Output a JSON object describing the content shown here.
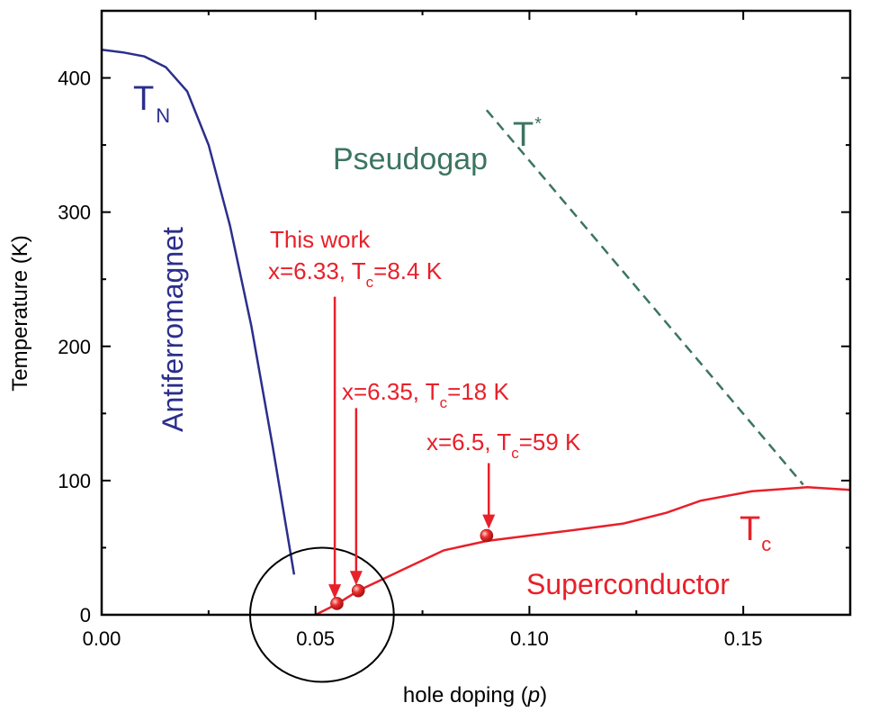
{
  "chart_data": {
    "type": "line",
    "title": "",
    "xlabel_prefix": "hole doping (",
    "xlabel_var": "p",
    "xlabel_suffix": ")",
    "ylabel": "Temperature (K)",
    "xlim": [
      0.0,
      0.175
    ],
    "ylim": [
      0,
      450
    ],
    "x_ticks": [
      0.0,
      0.05,
      0.1,
      0.15
    ],
    "x_tick_labels": [
      "0.00",
      "0.05",
      "0.10",
      "0.15"
    ],
    "y_ticks": [
      0,
      100,
      200,
      300,
      400
    ],
    "y_tick_labels": [
      "0",
      "100",
      "200",
      "300",
      "400"
    ],
    "grid": false,
    "series": [
      {
        "key": "TN",
        "color": "#2b2e8c",
        "style": "solid",
        "x": [
          0.0,
          0.005,
          0.01,
          0.015,
          0.02,
          0.025,
          0.03,
          0.035,
          0.04,
          0.045
        ],
        "y": [
          421,
          419,
          416,
          408,
          390,
          350,
          290,
          215,
          125,
          30
        ]
      },
      {
        "key": "T_star",
        "color": "#3b7560",
        "style": "dashed",
        "x": [
          0.09,
          0.164
        ],
        "y": [
          376,
          97
        ]
      },
      {
        "key": "Tc",
        "color": "#e8202a",
        "style": "solid",
        "x": [
          0.05,
          0.055,
          0.06,
          0.07,
          0.08,
          0.09,
          0.1,
          0.11,
          0.122,
          0.132,
          0.14,
          0.152,
          0.165,
          0.175
        ],
        "y": [
          0,
          8,
          18,
          33,
          48,
          55,
          59,
          63,
          68,
          76,
          85,
          92,
          95,
          93
        ]
      }
    ],
    "points": [
      {
        "x": 0.055,
        "y": 8.4,
        "color": "#e8202a"
      },
      {
        "x": 0.06,
        "y": 18,
        "color": "#e8202a"
      },
      {
        "x": 0.09,
        "y": 59,
        "color": "#e8202a"
      }
    ],
    "arrows": [
      {
        "x": 0.0545,
        "y_from": 237,
        "y_to": 12
      },
      {
        "x": 0.0595,
        "y_from": 154,
        "y_to": 22
      },
      {
        "x": 0.0905,
        "y_from": 113,
        "y_to": 64
      }
    ],
    "ellipse": {
      "cx": 0.0515,
      "cy": 0,
      "rx": 0.0168,
      "ry": 50
    },
    "labels": {
      "tn_main": "T",
      "tn_sub": "N",
      "tstar_main": "T",
      "tstar_sup": "*",
      "pseudogap": "Pseudogap",
      "antiferromagnet": "Antiferromagnet",
      "this_work": "This work",
      "x633_pre": "x=6.33, T",
      "x633_sub": "c",
      "x633_post": "=8.4 K",
      "x635_pre": "x=6.35, T",
      "x635_sub": "c",
      "x635_post": "=18 K",
      "x65_pre": "x=6.5, T",
      "x65_sub": "c",
      "x65_post": "=59 K",
      "tc_main": "T",
      "tc_sub": "c",
      "superconductor": "Superconductor"
    },
    "colors": {
      "tn": "#2b2e8c",
      "pseudogap": "#3b7560",
      "sc": "#e8202a",
      "axis": "#000000",
      "ellipse": "#000000"
    }
  }
}
